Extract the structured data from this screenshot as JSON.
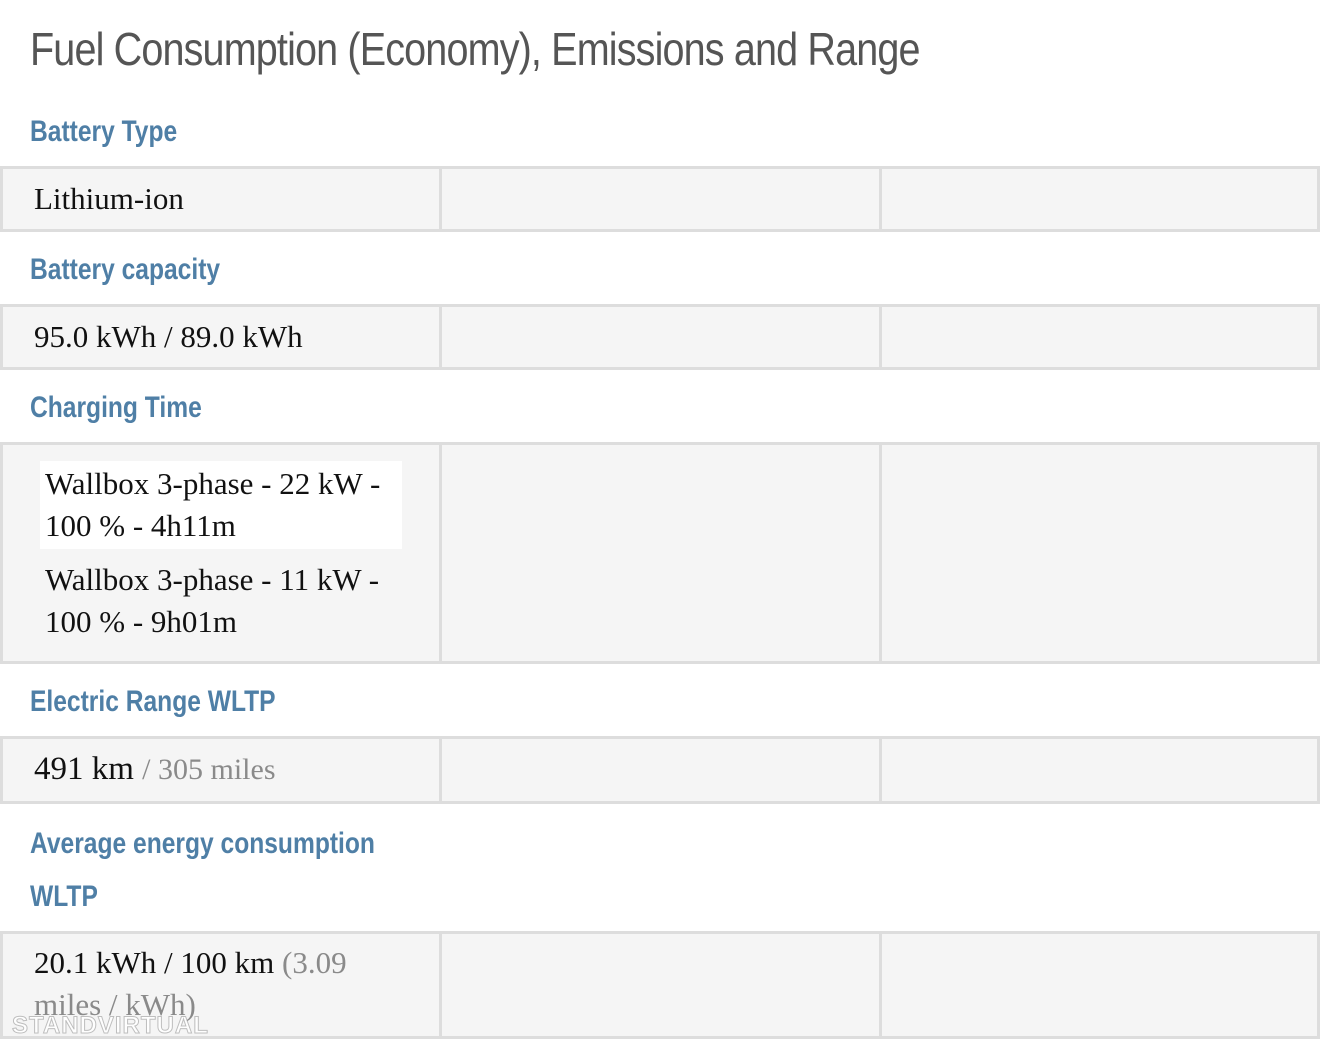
{
  "page": {
    "title": "Fuel Consumption (Economy), Emissions and Range"
  },
  "sections": {
    "battery_type": {
      "label": "Battery Type",
      "value": "Lithium-ion"
    },
    "battery_capacity": {
      "label": "Battery capacity",
      "value": "95.0 kWh / 89.0 kWh"
    },
    "charging_time": {
      "label": "Charging Time",
      "items": [
        "Wallbox 3-phase - 22 kW - 100 % - 4h11m",
        "Wallbox 3-phase - 11 kW - 100 % - 9h01m"
      ]
    },
    "electric_range": {
      "label": "Electric Range WLTP",
      "value_primary": "491 km",
      "value_secondary": "/ 305 miles"
    },
    "energy_consumption": {
      "label": "Average energy consumption WLTP",
      "value_primary": "20.1 kWh / 100 km",
      "value_secondary": "(3.09 miles / kWh)"
    }
  },
  "watermark": {
    "text": "STANDVIRTUAL"
  },
  "colors": {
    "title": "#555555",
    "section_label": "#4f7fa6",
    "row_background": "#f5f5f5",
    "row_border": "#dddddd",
    "muted_text": "#8a8a8a"
  }
}
